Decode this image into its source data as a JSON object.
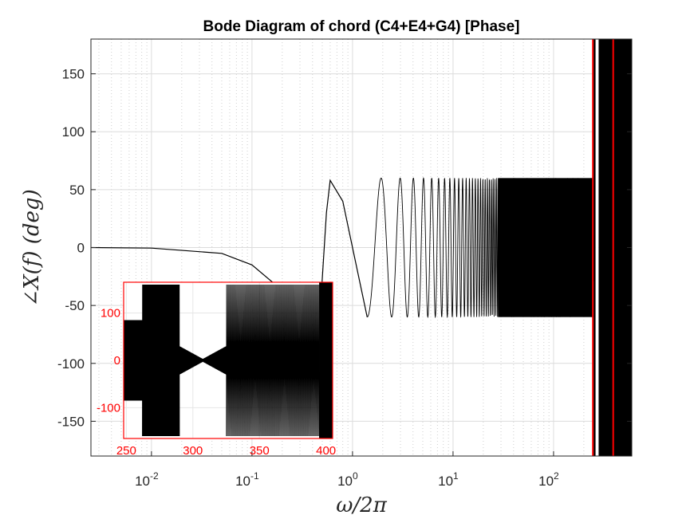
{
  "chart_data": {
    "type": "line",
    "title": "Bode Diagram of chord (C4+E4+G4) [Phase]",
    "xlabel": "ω/2π",
    "ylabel": "∠X(f) (deg)",
    "x_scale": "log",
    "xlim": [
      0.0025,
      600
    ],
    "ylim": [
      -180,
      180
    ],
    "grid": true,
    "x_ticks": [
      {
        "value": 0.01,
        "base": "10",
        "exp": "-2"
      },
      {
        "value": 0.1,
        "base": "10",
        "exp": "-1"
      },
      {
        "value": 1,
        "base": "10",
        "exp": "0"
      },
      {
        "value": 10,
        "base": "10",
        "exp": "1"
      },
      {
        "value": 100,
        "base": "10",
        "exp": "2"
      }
    ],
    "y_ticks": [
      {
        "value": 150,
        "label": "150"
      },
      {
        "value": 100,
        "label": "100"
      },
      {
        "value": 50,
        "label": "50"
      },
      {
        "value": 0,
        "label": "0"
      },
      {
        "value": -50,
        "label": "-50"
      },
      {
        "value": -100,
        "label": "-100"
      },
      {
        "value": -150,
        "label": "-150"
      }
    ],
    "series": [
      {
        "color": "#000000",
        "description_points": {
          "x": [
            0.0025,
            0.01,
            0.05,
            0.1,
            0.2,
            0.3,
            0.45,
            0.55,
            0.6,
            0.8,
            1.0,
            1.4
          ],
          "y": [
            0,
            -0.5,
            -5,
            -15,
            -37,
            -55,
            -90,
            30,
            58,
            40,
            0,
            -60
          ]
        },
        "oscillation": {
          "x_start": 1.4,
          "x_end": 250,
          "amplitude": 60
        },
        "dense_band": {
          "x_start": 280,
          "x_end": 600,
          "y_min": -180,
          "y_max": 180
        }
      }
    ],
    "markers": [
      {
        "color": "#ff0000",
        "x": 246
      },
      {
        "color": "#ff0000",
        "x": 392
      }
    ],
    "inset": {
      "xlim": [
        248,
        405
      ],
      "ylim": [
        -165,
        165
      ],
      "color_axes": "#ff0000",
      "x_ticks": [
        {
          "value": 250,
          "label": "250"
        },
        {
          "value": 300,
          "label": "300"
        },
        {
          "value": 350,
          "label": "350"
        },
        {
          "value": 400,
          "label": "400"
        }
      ],
      "y_ticks": [
        {
          "value": 100,
          "label": "100"
        },
        {
          "value": 0,
          "label": "0"
        },
        {
          "value": -100,
          "label": "-100"
        }
      ]
    }
  }
}
